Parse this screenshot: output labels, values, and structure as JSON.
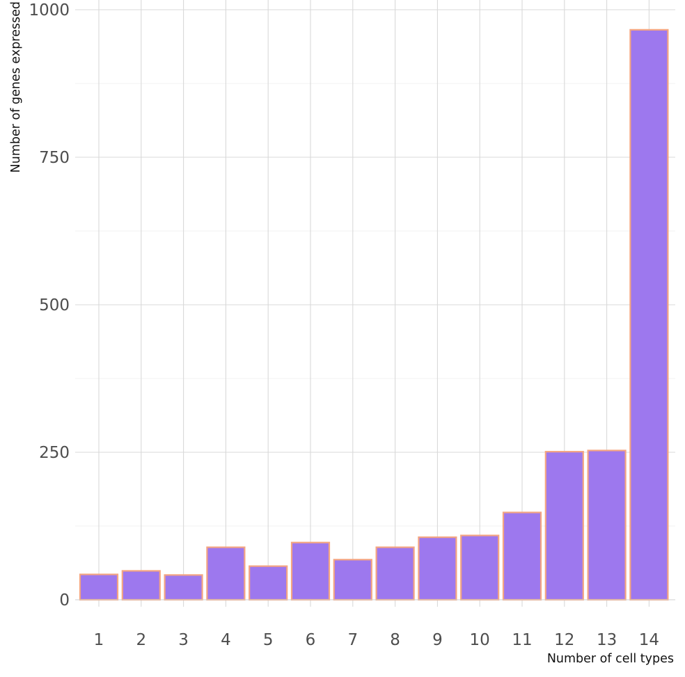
{
  "chart_data": {
    "type": "bar",
    "title": "",
    "xlabel": "Number of cell types",
    "ylabel": "Number of genes expressed",
    "categories": [
      "1",
      "2",
      "3",
      "4",
      "5",
      "6",
      "7",
      "8",
      "9",
      "10",
      "11",
      "12",
      "13",
      "14"
    ],
    "values": [
      43,
      49,
      42,
      89,
      57,
      97,
      68,
      89,
      106,
      109,
      148,
      251,
      253,
      966
    ],
    "ylim": [
      0,
      1000
    ],
    "yticks": [
      0,
      250,
      500,
      750,
      1000
    ],
    "grid": true,
    "legend": "none",
    "colors": {
      "bar_fill": "#9d78ee",
      "bar_outline": "#f4a582"
    }
  }
}
